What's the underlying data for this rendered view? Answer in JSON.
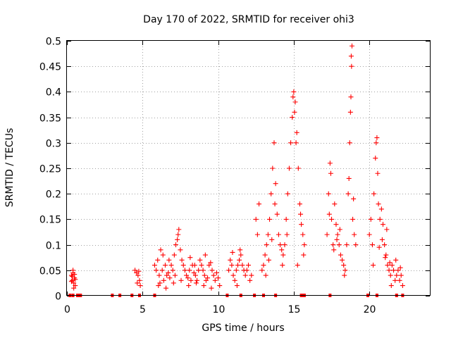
{
  "chart_data": {
    "type": "scatter",
    "title": "Day 170 of 2022, SRMTID for receiver ohi3",
    "xlabel": "GPS time / hours",
    "ylabel": "SRMTID / TECUs",
    "xlim": [
      0,
      24
    ],
    "ylim": [
      0,
      0.5
    ],
    "grid": true,
    "marker": "plus",
    "color": "#ff0000",
    "xticks": [
      0,
      5,
      10,
      15,
      20
    ],
    "xtick_labels": [
      "0",
      "5",
      "10",
      "15",
      "20"
    ],
    "yticks": [
      0,
      0.05,
      0.1,
      0.15,
      0.2,
      0.25,
      0.3,
      0.35,
      0.4,
      0.45,
      0.5
    ],
    "ytick_labels": [
      "0",
      "0.05",
      "0.1",
      "0.15",
      "0.2",
      "0.25",
      "0.3",
      "0.35",
      "0.4",
      "0.45",
      "0.5"
    ],
    "zero_points_x": [
      0.2,
      0.4,
      0.7,
      0.8,
      0.9,
      3.0,
      3.5,
      4.3,
      4.8,
      5.8,
      10.6,
      11.5,
      12.4,
      13.0,
      13.8,
      15.5,
      15.6,
      15.7,
      17.4,
      19.9,
      20.5,
      21.8,
      22.2
    ],
    "points": [
      [
        0.3,
        0.04
      ],
      [
        0.35,
        0.03
      ],
      [
        0.4,
        0.045
      ],
      [
        0.45,
        0.025
      ],
      [
        0.5,
        0.035
      ],
      [
        0.55,
        0.02
      ],
      [
        0.4,
        0.05
      ],
      [
        0.3,
        0.028
      ],
      [
        0.5,
        0.042
      ],
      [
        0.45,
        0.015
      ],
      [
        0.35,
        0.038
      ],
      [
        0.55,
        0.032
      ],
      [
        4.5,
        0.05
      ],
      [
        4.6,
        0.045
      ],
      [
        4.7,
        0.04
      ],
      [
        4.8,
        0.03
      ],
      [
        4.85,
        0.02
      ],
      [
        4.75,
        0.048
      ],
      [
        4.65,
        0.025
      ],
      [
        5.8,
        0.06
      ],
      [
        5.9,
        0.05
      ],
      [
        6.0,
        0.07
      ],
      [
        6.1,
        0.04
      ],
      [
        6.2,
        0.09
      ],
      [
        6.3,
        0.05
      ],
      [
        6.4,
        0.03
      ],
      [
        6.5,
        0.06
      ],
      [
        6.6,
        0.04
      ],
      [
        6.7,
        0.045
      ],
      [
        6.8,
        0.035
      ],
      [
        6.9,
        0.06
      ],
      [
        7.0,
        0.05
      ],
      [
        7.1,
        0.08
      ],
      [
        7.2,
        0.1
      ],
      [
        7.3,
        0.11
      ],
      [
        7.4,
        0.13
      ],
      [
        7.5,
        0.09
      ],
      [
        7.6,
        0.07
      ],
      [
        7.7,
        0.06
      ],
      [
        7.8,
        0.05
      ],
      [
        7.9,
        0.04
      ],
      [
        8.0,
        0.035
      ],
      [
        8.1,
        0.05
      ],
      [
        8.2,
        0.03
      ],
      [
        8.3,
        0.06
      ],
      [
        8.4,
        0.045
      ],
      [
        8.5,
        0.04
      ],
      [
        8.6,
        0.03
      ],
      [
        8.7,
        0.05
      ],
      [
        8.8,
        0.07
      ],
      [
        8.9,
        0.06
      ],
      [
        9.0,
        0.05
      ],
      [
        9.1,
        0.04
      ],
      [
        9.2,
        0.03
      ],
      [
        9.3,
        0.035
      ],
      [
        9.4,
        0.06
      ],
      [
        9.5,
        0.065
      ],
      [
        9.6,
        0.05
      ],
      [
        9.7,
        0.04
      ],
      [
        9.8,
        0.03
      ],
      [
        9.9,
        0.045
      ],
      [
        10.0,
        0.035
      ],
      [
        10.1,
        0.02
      ],
      [
        6.05,
        0.02
      ],
      [
        6.55,
        0.015
      ],
      [
        7.05,
        0.025
      ],
      [
        7.55,
        0.03
      ],
      [
        8.05,
        0.02
      ],
      [
        8.55,
        0.025
      ],
      [
        9.05,
        0.02
      ],
      [
        9.55,
        0.015
      ],
      [
        6.35,
        0.08
      ],
      [
        7.35,
        0.12
      ],
      [
        6.75,
        0.07
      ],
      [
        8.15,
        0.075
      ],
      [
        9.15,
        0.08
      ],
      [
        6.15,
        0.025
      ],
      [
        7.15,
        0.04
      ],
      [
        8.45,
        0.06
      ],
      [
        10.7,
        0.05
      ],
      [
        10.8,
        0.07
      ],
      [
        10.9,
        0.06
      ],
      [
        11.0,
        0.04
      ],
      [
        11.1,
        0.03
      ],
      [
        11.2,
        0.05
      ],
      [
        11.3,
        0.06
      ],
      [
        11.4,
        0.07
      ],
      [
        11.5,
        0.08
      ],
      [
        11.6,
        0.06
      ],
      [
        11.7,
        0.05
      ],
      [
        11.8,
        0.04
      ],
      [
        11.9,
        0.05
      ],
      [
        12.0,
        0.06
      ],
      [
        12.1,
        0.03
      ],
      [
        12.2,
        0.04
      ],
      [
        11.45,
        0.09
      ],
      [
        11.25,
        0.02
      ],
      [
        10.95,
        0.085
      ],
      [
        12.5,
        0.15
      ],
      [
        12.6,
        0.12
      ],
      [
        12.7,
        0.18
      ],
      [
        12.9,
        0.05
      ],
      [
        13.0,
        0.06
      ],
      [
        13.1,
        0.08
      ],
      [
        13.2,
        0.1
      ],
      [
        13.3,
        0.12
      ],
      [
        13.4,
        0.15
      ],
      [
        13.5,
        0.2
      ],
      [
        13.6,
        0.25
      ],
      [
        13.7,
        0.3
      ],
      [
        13.8,
        0.22
      ],
      [
        13.9,
        0.16
      ],
      [
        14.0,
        0.12
      ],
      [
        14.1,
        0.1
      ],
      [
        14.2,
        0.09
      ],
      [
        14.3,
        0.08
      ],
      [
        14.4,
        0.1
      ],
      [
        14.5,
        0.15
      ],
      [
        14.6,
        0.2
      ],
      [
        14.7,
        0.25
      ],
      [
        14.8,
        0.3
      ],
      [
        14.9,
        0.35
      ],
      [
        15.0,
        0.4
      ],
      [
        15.1,
        0.38
      ],
      [
        15.2,
        0.32
      ],
      [
        15.3,
        0.25
      ],
      [
        15.4,
        0.18
      ],
      [
        15.5,
        0.14
      ],
      [
        15.6,
        0.12
      ],
      [
        15.7,
        0.1
      ],
      [
        13.15,
        0.04
      ],
      [
        13.35,
        0.07
      ],
      [
        13.55,
        0.11
      ],
      [
        13.75,
        0.18
      ],
      [
        14.25,
        0.06
      ],
      [
        14.55,
        0.12
      ],
      [
        14.95,
        0.39
      ],
      [
        15.05,
        0.36
      ],
      [
        15.15,
        0.3
      ],
      [
        15.45,
        0.16
      ],
      [
        15.65,
        0.08
      ],
      [
        15.25,
        0.06
      ],
      [
        17.2,
        0.12
      ],
      [
        17.3,
        0.2
      ],
      [
        17.4,
        0.26
      ],
      [
        17.5,
        0.15
      ],
      [
        17.6,
        0.1
      ],
      [
        17.7,
        0.18
      ],
      [
        17.8,
        0.14
      ],
      [
        17.9,
        0.12
      ],
      [
        18.0,
        0.1
      ],
      [
        18.1,
        0.08
      ],
      [
        18.2,
        0.07
      ],
      [
        18.3,
        0.06
      ],
      [
        18.4,
        0.05
      ],
      [
        18.5,
        0.1
      ],
      [
        18.6,
        0.2
      ],
      [
        18.7,
        0.3
      ],
      [
        18.75,
        0.36
      ],
      [
        18.8,
        0.47
      ],
      [
        18.85,
        0.49
      ],
      [
        18.9,
        0.15
      ],
      [
        19.0,
        0.12
      ],
      [
        19.1,
        0.1
      ],
      [
        17.45,
        0.24
      ],
      [
        17.65,
        0.09
      ],
      [
        18.05,
        0.13
      ],
      [
        18.35,
        0.04
      ],
      [
        18.65,
        0.23
      ],
      [
        18.78,
        0.39
      ],
      [
        18.82,
        0.45
      ],
      [
        18.95,
        0.19
      ],
      [
        17.35,
        0.16
      ],
      [
        17.85,
        0.11
      ],
      [
        20.0,
        0.12
      ],
      [
        20.1,
        0.15
      ],
      [
        20.2,
        0.1
      ],
      [
        20.3,
        0.2
      ],
      [
        20.4,
        0.27
      ],
      [
        20.45,
        0.3
      ],
      [
        20.5,
        0.31
      ],
      [
        20.6,
        0.18
      ],
      [
        20.7,
        0.15
      ],
      [
        20.8,
        0.17
      ],
      [
        20.9,
        0.14
      ],
      [
        21.0,
        0.1
      ],
      [
        21.1,
        0.08
      ],
      [
        21.2,
        0.06
      ],
      [
        21.3,
        0.05
      ],
      [
        21.4,
        0.04
      ],
      [
        21.5,
        0.06
      ],
      [
        21.6,
        0.05
      ],
      [
        21.7,
        0.03
      ],
      [
        21.8,
        0.04
      ],
      [
        21.9,
        0.05
      ],
      [
        22.0,
        0.03
      ],
      [
        22.1,
        0.04
      ],
      [
        22.2,
        0.02
      ],
      [
        20.25,
        0.06
      ],
      [
        20.55,
        0.24
      ],
      [
        20.85,
        0.11
      ],
      [
        21.15,
        0.13
      ],
      [
        21.45,
        0.02
      ],
      [
        21.75,
        0.07
      ],
      [
        22.05,
        0.055
      ],
      [
        21.05,
        0.075
      ],
      [
        21.35,
        0.065
      ],
      [
        20.65,
        0.095
      ]
    ]
  }
}
